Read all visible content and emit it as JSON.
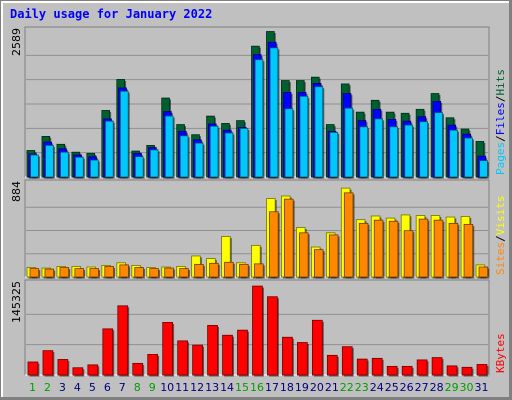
{
  "title": "Daily usage for January 2022",
  "colors": {
    "title": "#0000ff",
    "background": "#c0c0c0",
    "panel": "#c0c0c0",
    "grid": "#909090",
    "hits": "#006030",
    "files": "#0000ff",
    "pages": "#00c8ff",
    "visits": "#ffff00",
    "sites": "#ff8800",
    "kbytes": "#ff0000",
    "weekday_label": "#000080",
    "weekend_label": "#00a000"
  },
  "chart_data": [
    {
      "type": "bar",
      "panel": "traffic",
      "categories": [
        "1",
        "2",
        "3",
        "4",
        "5",
        "6",
        "7",
        "8",
        "9",
        "10",
        "11",
        "12",
        "13",
        "14",
        "15",
        "16",
        "17",
        "18",
        "19",
        "20",
        "21",
        "22",
        "23",
        "24",
        "25",
        "26",
        "27",
        "28",
        "29",
        "30",
        "31"
      ],
      "weekend_days": [
        "1",
        "2",
        "8",
        "9",
        "15",
        "16",
        "22",
        "23",
        "29",
        "30"
      ],
      "ymax_label": "2589",
      "ylim": [
        0,
        2589
      ],
      "side_labels": [
        "Hits",
        "Files",
        "Pages"
      ],
      "side_separators": [
        "/",
        "/"
      ],
      "series": [
        {
          "name": "Hits",
          "values": [
            470,
            720,
            580,
            440,
            420,
            1180,
            1730,
            460,
            560,
            1400,
            930,
            750,
            1080,
            950,
            1000,
            2320,
            2580,
            1710,
            1710,
            1770,
            930,
            1650,
            1150,
            1360,
            1150,
            1130,
            1200,
            1480,
            1050,
            850,
            630
          ]
        },
        {
          "name": "Files",
          "values": [
            410,
            620,
            500,
            390,
            360,
            1030,
            1580,
            420,
            520,
            1160,
            810,
            660,
            940,
            830,
            880,
            2170,
            2390,
            1500,
            1500,
            1660,
            810,
            1480,
            1000,
            1200,
            1020,
            990,
            1070,
            1340,
            920,
            760,
            370
          ]
        },
        {
          "name": "Pages",
          "values": [
            390,
            560,
            440,
            350,
            300,
            990,
            1520,
            360,
            480,
            1080,
            730,
            600,
            900,
            780,
            860,
            2080,
            2290,
            1210,
            1430,
            1600,
            790,
            1220,
            890,
            1030,
            890,
            920,
            980,
            1140,
            830,
            690,
            290
          ]
        }
      ]
    },
    {
      "type": "bar",
      "panel": "visitors",
      "ymax_label": "884",
      "ylim": [
        0,
        884
      ],
      "side_labels": [
        "Visits",
        "Sites"
      ],
      "side_separators": [
        "/"
      ],
      "series": [
        {
          "name": "Visits",
          "values": [
            90,
            85,
            100,
            100,
            95,
            110,
            135,
            110,
            90,
            95,
            100,
            200,
            175,
            385,
            135,
            300,
            745,
            770,
            470,
            285,
            420,
            845,
            545,
            580,
            560,
            590,
            585,
            585,
            570,
            575,
            115
          ]
        },
        {
          "name": "Sites",
          "values": [
            80,
            75,
            90,
            80,
            80,
            100,
            115,
            90,
            80,
            85,
            80,
            120,
            130,
            140,
            120,
            125,
            620,
            740,
            420,
            260,
            400,
            800,
            510,
            540,
            530,
            440,
            550,
            540,
            510,
            500,
            95
          ]
        }
      ]
    },
    {
      "type": "bar",
      "panel": "volume",
      "ymax_label": "145325",
      "ylim": [
        0,
        145325
      ],
      "side_labels": [
        "KBytes"
      ],
      "side_separators": [],
      "series": [
        {
          "name": "KBytes",
          "values": [
            20800,
            38900,
            24800,
            11600,
            16200,
            73700,
            110500,
            18600,
            32900,
            84000,
            54500,
            47700,
            79200,
            63500,
            71600,
            142000,
            125000,
            60300,
            51900,
            87400,
            31400,
            45200,
            25400,
            26600,
            13800,
            13800,
            24100,
            27800,
            14600,
            12300,
            16800
          ]
        }
      ]
    }
  ]
}
